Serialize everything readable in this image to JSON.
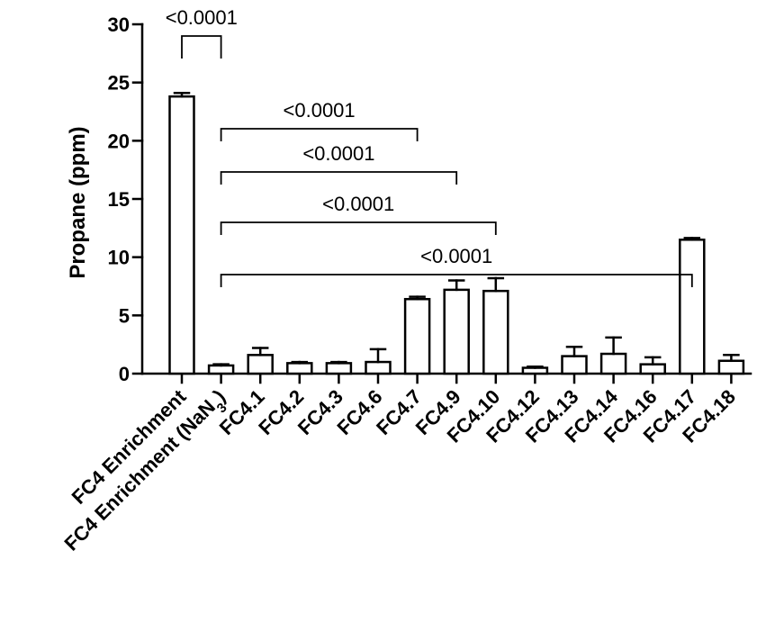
{
  "chart_data": {
    "type": "bar",
    "title": "",
    "xlabel": "",
    "ylabel": "Propane (ppm)",
    "ylim": [
      0,
      30
    ],
    "yticks": [
      0,
      5,
      10,
      15,
      20,
      25,
      30
    ],
    "grid": false,
    "categories": [
      "FC4 Enrichment",
      "FC4 Enrichment (NaN3)",
      "FC4.1",
      "FC4.2",
      "FC4.3",
      "FC4.6",
      "FC4.7",
      "FC4.9",
      "FC4.10",
      "FC4.12",
      "FC4.13",
      "FC4.14",
      "FC4.16",
      "FC4.17",
      "FC4.18"
    ],
    "values": [
      23.8,
      0.7,
      1.6,
      0.9,
      0.9,
      1.0,
      6.4,
      7.2,
      7.1,
      0.5,
      1.5,
      1.7,
      0.8,
      11.5,
      1.1
    ],
    "errors": [
      0.3,
      0.1,
      0.6,
      0.1,
      0.1,
      1.1,
      0.2,
      0.8,
      1.1,
      0.1,
      0.8,
      1.4,
      0.6,
      0.15,
      0.5
    ],
    "annotations": [
      {
        "label": "<0.0001",
        "from": "FC4 Enrichment",
        "to": "FC4 Enrichment (NaN3)"
      },
      {
        "label": "<0.0001",
        "from": "FC4 Enrichment (NaN3)",
        "to": "FC4.7"
      },
      {
        "label": "<0.0001",
        "from": "FC4 Enrichment (NaN3)",
        "to": "FC4.9"
      },
      {
        "label": "<0.0001",
        "from": "FC4 Enrichment (NaN3)",
        "to": "FC4.10"
      },
      {
        "label": "<0.0001",
        "from": "FC4 Enrichment (NaN3)",
        "to": "FC4.17"
      }
    ]
  }
}
